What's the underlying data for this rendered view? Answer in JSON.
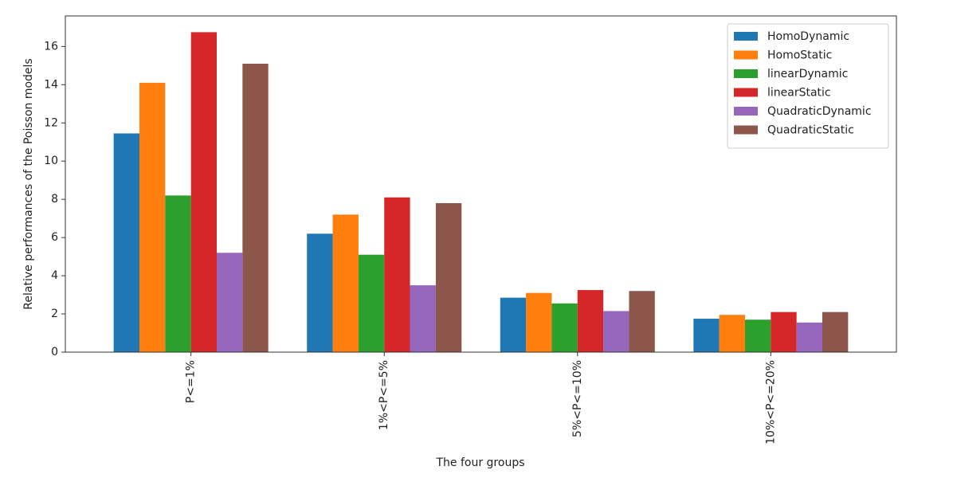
{
  "chart_data": {
    "type": "bar",
    "xlabel": "The four groups",
    "ylabel": "Relative performances of the Poisson models",
    "categories": [
      "P<=1%",
      "1%<P<=5%",
      "5%<P<=10%",
      "10%<P<=20%"
    ],
    "series": [
      {
        "name": "HomoDynamic",
        "color": "#1f77b4",
        "values": [
          11.45,
          6.2,
          2.85,
          1.75
        ]
      },
      {
        "name": "HomoStatic",
        "color": "#ff7f0e",
        "values": [
          14.1,
          7.2,
          3.1,
          1.95
        ]
      },
      {
        "name": "linearDynamic",
        "color": "#2ca02c",
        "values": [
          8.2,
          5.1,
          2.55,
          1.7
        ]
      },
      {
        "name": "linearStatic",
        "color": "#d62728",
        "values": [
          16.75,
          8.1,
          3.25,
          2.1
        ]
      },
      {
        "name": "QuadraticDynamic",
        "color": "#9467bd",
        "values": [
          5.2,
          3.5,
          2.15,
          1.55
        ]
      },
      {
        "name": "QuadraticStatic",
        "color": "#8c564b",
        "values": [
          15.1,
          7.8,
          3.2,
          2.1
        ]
      }
    ],
    "ylim": [
      0,
      17.6
    ],
    "yticks": [
      0,
      2,
      4,
      6,
      8,
      10,
      12,
      14,
      16
    ],
    "legend": "upper right"
  }
}
